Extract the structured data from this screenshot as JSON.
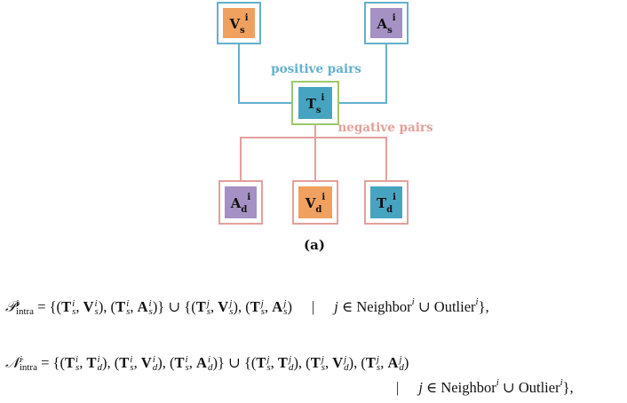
{
  "diagram": {
    "caption": "(a)",
    "positive_label": "positive pairs",
    "negative_label": "negative pairs",
    "colors": {
      "positive": "#63b1cc",
      "negative": "#e2a09c",
      "anchor_frame": "#9bc96a",
      "video": "#f0a05f",
      "audio": "#a591c4",
      "text": "#47a4c0"
    },
    "nodes": {
      "vs": {
        "base": "V",
        "sub": "s",
        "sup": "i"
      },
      "as": {
        "base": "A",
        "sub": "s",
        "sup": "i"
      },
      "ts": {
        "base": "T",
        "sub": "s",
        "sup": "i"
      },
      "ad": {
        "base": "A",
        "sub": "d",
        "sup": "i"
      },
      "vd": {
        "base": "V",
        "sub": "d",
        "sup": "i"
      },
      "td": {
        "base": "T",
        "sub": "d",
        "sup": "i"
      }
    }
  },
  "equations": {
    "p_intra": "𝒫ⁱintra = {(Tⁱs, Vⁱs), (Tⁱs, Aⁱs)} ∪ {(Tʲs, Vʲs), (Tʲs, Aʲs)}  |  j ∈ Neighborⁱ ∪ Outlierⁱ},",
    "n_intra": "𝒩ⁱintra = {(Tⁱs, Tⁱd), (Tⁱs, Vⁱd), (Tⁱs, Aⁱd)} ∪ {(Tʲs, Tʲd), (Tʲs, Vʲd), (Tʲs, Aʲd)  |  j ∈ Neighborⁱ ∪ Outlierⁱ},"
  }
}
